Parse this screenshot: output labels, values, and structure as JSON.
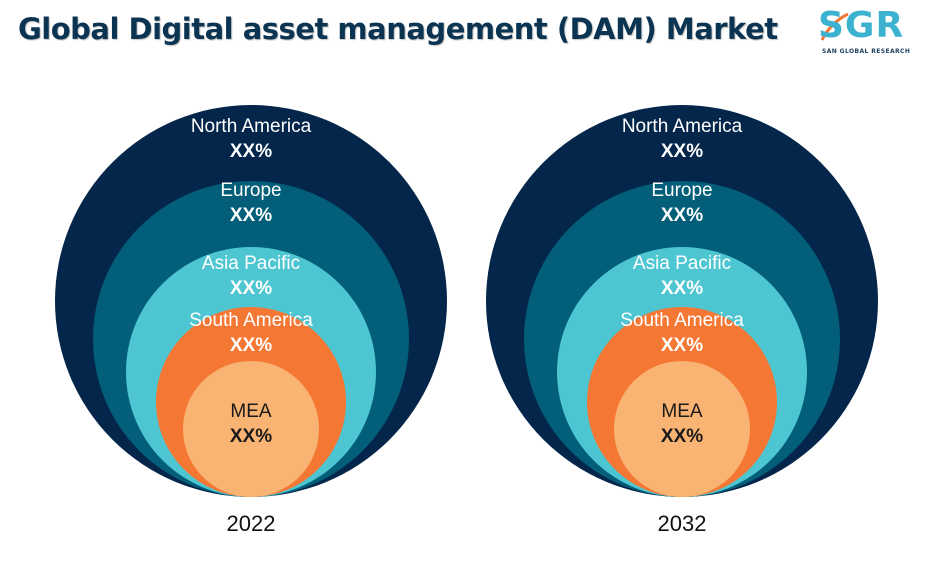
{
  "title": "Global Digital asset management (DAM) Market",
  "logo": {
    "text": "SGR",
    "subtitle": "SAN GLOBAL RESEARCH",
    "color": "#3db2d0"
  },
  "chart_data": {
    "type": "nested-circles",
    "levels": [
      {
        "name": "North America",
        "value": "XX%",
        "color": "#03264a",
        "text_color": "#ffffff"
      },
      {
        "name": "Europe",
        "value": "XX%",
        "color": "#035e79",
        "text_color": "#ffffff"
      },
      {
        "name": "Asia Pacific",
        "value": "XX%",
        "color": "#4ec6d2",
        "text_color": "#ffffff"
      },
      {
        "name": "South America",
        "value": "XX%",
        "color": "#f47834",
        "text_color": "#ffffff"
      },
      {
        "name": "MEA",
        "value": "XX%",
        "color": "#f9b372",
        "text_color": "#1a1a1a"
      }
    ],
    "charts": [
      {
        "year": "2022"
      },
      {
        "year": "2032"
      }
    ]
  }
}
